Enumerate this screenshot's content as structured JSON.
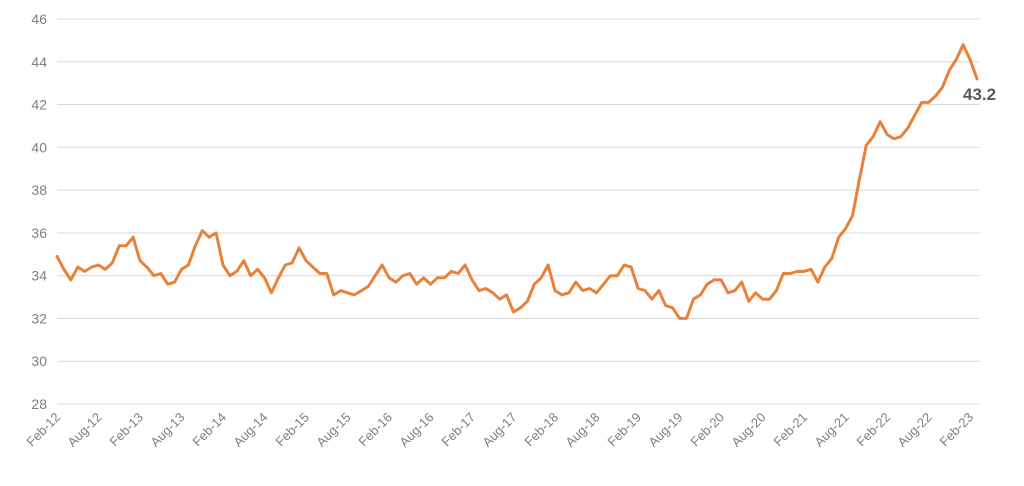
{
  "chart_data": {
    "type": "line",
    "title": "",
    "xlabel": "",
    "ylabel": "",
    "ylim": [
      28,
      46
    ],
    "yticks": [
      28,
      30,
      32,
      34,
      36,
      38,
      40,
      42,
      44,
      46
    ],
    "grid": true,
    "legend": "none",
    "x_tick_labels": [
      "Feb-12",
      "Aug-12",
      "Feb-13",
      "Aug-13",
      "Feb-14",
      "Aug-14",
      "Feb-15",
      "Aug-15",
      "Feb-16",
      "Aug-16",
      "Feb-17",
      "Aug-17",
      "Feb-18",
      "Aug-18",
      "Feb-19",
      "Aug-19",
      "Feb-20",
      "Aug-20",
      "Feb-21",
      "Aug-21",
      "Feb-22",
      "Aug-22",
      "Feb-23"
    ],
    "end_label": "43.2",
    "series": [
      {
        "color": "#e8823a",
        "values": [
          34.9,
          34.3,
          33.8,
          34.4,
          34.2,
          34.4,
          34.5,
          34.3,
          34.6,
          35.4,
          35.4,
          35.8,
          34.7,
          34.4,
          34.0,
          34.1,
          33.6,
          33.7,
          34.3,
          34.5,
          35.4,
          36.1,
          35.8,
          36.0,
          34.5,
          34.0,
          34.2,
          34.7,
          34.0,
          34.3,
          33.9,
          33.2,
          33.9,
          34.5,
          34.6,
          35.3,
          34.7,
          34.4,
          34.1,
          34.1,
          33.1,
          33.3,
          33.2,
          33.1,
          33.3,
          33.5,
          34.0,
          34.5,
          33.9,
          33.7,
          34.0,
          34.1,
          33.6,
          33.9,
          33.6,
          33.9,
          33.9,
          34.2,
          34.1,
          34.5,
          33.8,
          33.3,
          33.4,
          33.2,
          32.9,
          33.1,
          32.3,
          32.5,
          32.8,
          33.6,
          33.9,
          34.5,
          33.3,
          33.1,
          33.2,
          33.7,
          33.3,
          33.4,
          33.2,
          33.6,
          34.0,
          34.0,
          34.5,
          34.4,
          33.4,
          33.3,
          32.9,
          33.3,
          32.6,
          32.5,
          32.0,
          32.0,
          32.9,
          33.1,
          33.6,
          33.8,
          33.8,
          33.2,
          33.3,
          33.7,
          32.8,
          33.2,
          32.9,
          32.9,
          33.3,
          34.1,
          34.1,
          34.2,
          34.2,
          34.3,
          33.7,
          34.4,
          34.8,
          35.8,
          36.2,
          36.8,
          38.5,
          40.1,
          40.5,
          41.2,
          40.6,
          40.4,
          40.5,
          40.9,
          41.5,
          42.1,
          42.1,
          42.4,
          42.8,
          43.6,
          44.1,
          44.8,
          44.1,
          43.2
        ]
      }
    ]
  }
}
